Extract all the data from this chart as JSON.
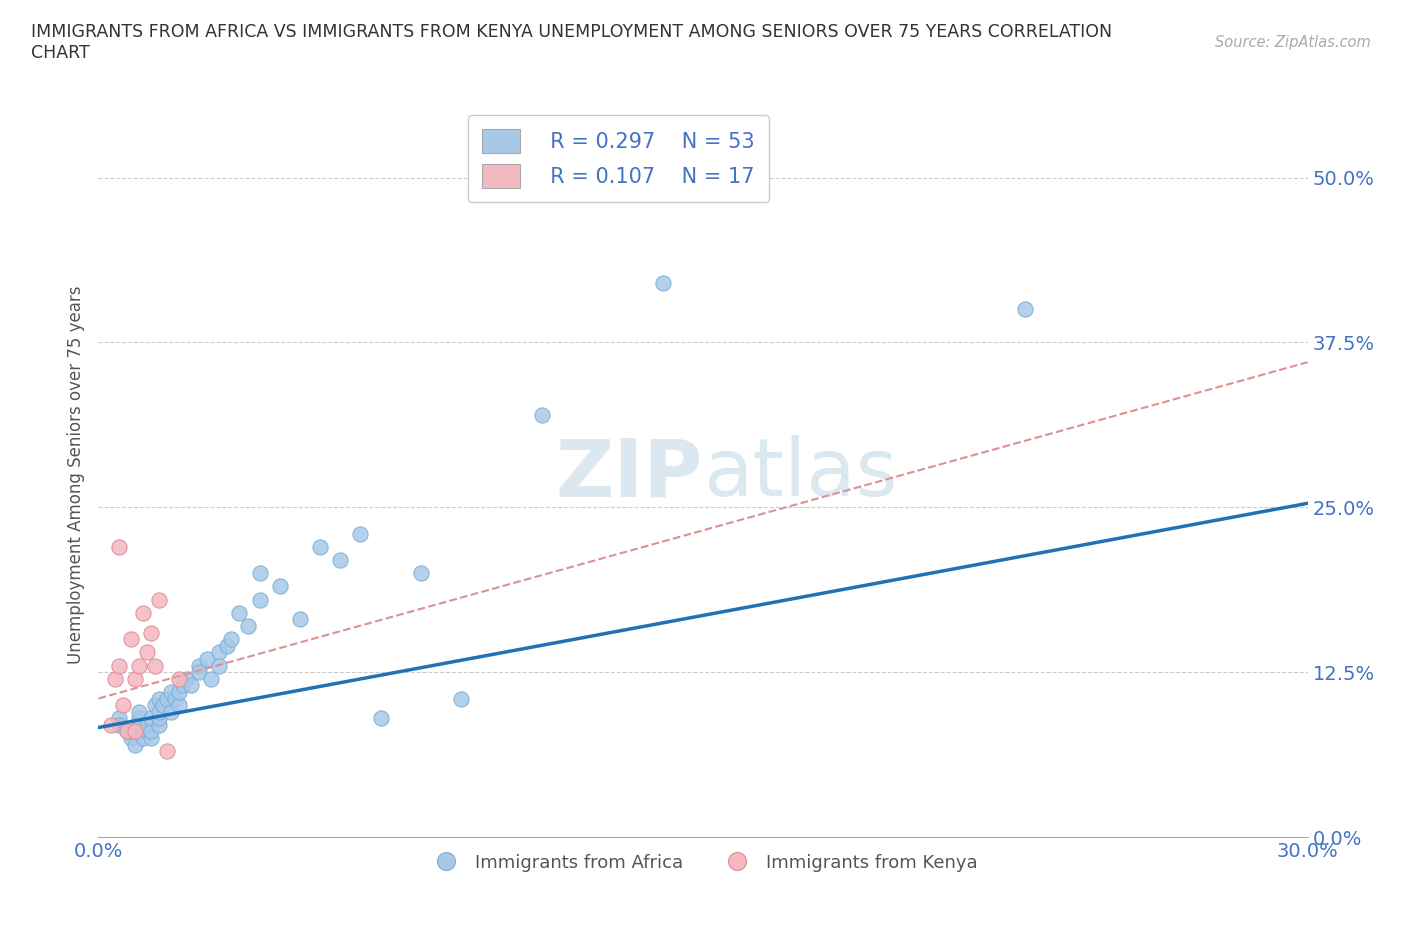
{
  "title": "IMMIGRANTS FROM AFRICA VS IMMIGRANTS FROM KENYA UNEMPLOYMENT AMONG SENIORS OVER 75 YEARS CORRELATION\nCHART",
  "source": "Source: ZipAtlas.com",
  "ylabel": "Unemployment Among Seniors over 75 years",
  "xlim": [
    0.0,
    0.3
  ],
  "ylim": [
    0.0,
    0.55
  ],
  "yticks": [
    0.0,
    0.125,
    0.25,
    0.375,
    0.5
  ],
  "ytick_labels": [
    "0.0%",
    "12.5%",
    "25.0%",
    "37.5%",
    "50.0%"
  ],
  "xticks": [
    0.0,
    0.05,
    0.1,
    0.15,
    0.2,
    0.25,
    0.3
  ],
  "xtick_labels": [
    "0.0%",
    "",
    "",
    "",
    "",
    "",
    "30.0%"
  ],
  "africa_color": "#a8c8e8",
  "kenya_color": "#f4b8c0",
  "africa_line_color": "#2171b5",
  "kenya_line_color": "#e09090",
  "watermark_zip": "ZIP",
  "watermark_atlas": "atlas",
  "legend_africa_r": "R = 0.297",
  "legend_africa_n": "N = 53",
  "legend_kenya_r": "R = 0.107",
  "legend_kenya_n": "N = 17",
  "africa_scatter_x": [
    0.005,
    0.005,
    0.007,
    0.008,
    0.009,
    0.01,
    0.01,
    0.01,
    0.01,
    0.011,
    0.012,
    0.012,
    0.013,
    0.013,
    0.013,
    0.014,
    0.015,
    0.015,
    0.015,
    0.015,
    0.016,
    0.017,
    0.018,
    0.018,
    0.019,
    0.02,
    0.02,
    0.021,
    0.022,
    0.023,
    0.025,
    0.025,
    0.027,
    0.028,
    0.03,
    0.03,
    0.032,
    0.033,
    0.035,
    0.037,
    0.04,
    0.04,
    0.045,
    0.05,
    0.055,
    0.06,
    0.065,
    0.07,
    0.08,
    0.09,
    0.11,
    0.14,
    0.23
  ],
  "africa_scatter_y": [
    0.09,
    0.085,
    0.08,
    0.075,
    0.07,
    0.08,
    0.085,
    0.09,
    0.095,
    0.075,
    0.08,
    0.085,
    0.075,
    0.08,
    0.09,
    0.1,
    0.085,
    0.09,
    0.095,
    0.105,
    0.1,
    0.105,
    0.095,
    0.11,
    0.105,
    0.1,
    0.11,
    0.115,
    0.12,
    0.115,
    0.13,
    0.125,
    0.135,
    0.12,
    0.14,
    0.13,
    0.145,
    0.15,
    0.17,
    0.16,
    0.18,
    0.2,
    0.19,
    0.165,
    0.22,
    0.21,
    0.23,
    0.09,
    0.2,
    0.105,
    0.32,
    0.42,
    0.4
  ],
  "kenya_scatter_x": [
    0.003,
    0.004,
    0.005,
    0.005,
    0.006,
    0.007,
    0.008,
    0.009,
    0.009,
    0.01,
    0.011,
    0.012,
    0.013,
    0.014,
    0.015,
    0.017,
    0.02
  ],
  "kenya_scatter_y": [
    0.085,
    0.12,
    0.13,
    0.22,
    0.1,
    0.08,
    0.15,
    0.12,
    0.08,
    0.13,
    0.17,
    0.14,
    0.155,
    0.13,
    0.18,
    0.065,
    0.12
  ],
  "africa_line_x0": 0.0,
  "africa_line_x1": 0.3,
  "africa_line_y0": 0.083,
  "africa_line_y1": 0.253,
  "kenya_line_x0": 0.0,
  "kenya_line_x1": 0.3,
  "kenya_line_y0": 0.105,
  "kenya_line_y1": 0.36
}
